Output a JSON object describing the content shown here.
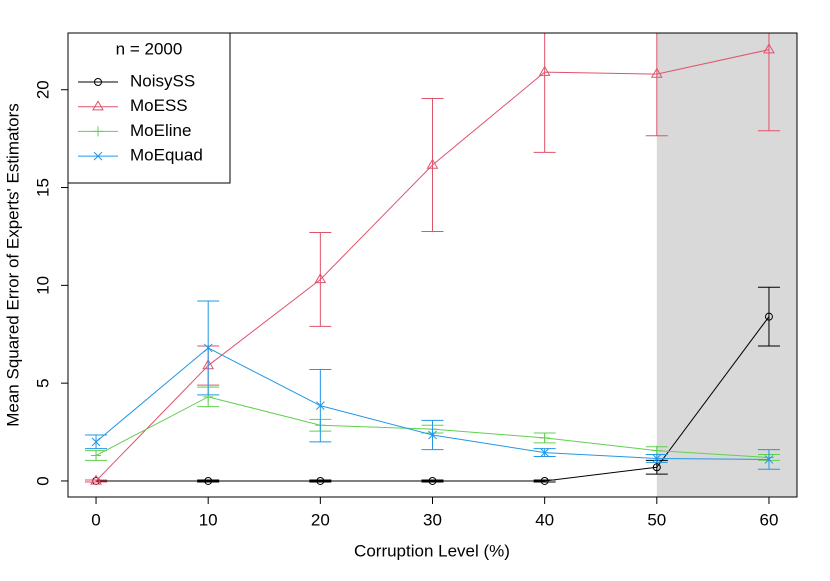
{
  "chart_data": {
    "type": "line",
    "x_label": "Corruption Level (%)",
    "y_label": "Mean Squared Error of Experts' Estimators",
    "legend_title": "n = 2000",
    "legend_position": "top-left",
    "x": [
      0,
      10,
      20,
      30,
      40,
      50,
      60
    ],
    "series": [
      {
        "name": "NoisySS",
        "color": "#000000",
        "marker": "circle",
        "values": [
          0,
          0,
          0,
          0,
          0,
          0.7,
          8.4
        ],
        "errors": [
          0.05,
          0.05,
          0.05,
          0.05,
          0.05,
          0.35,
          1.5
        ]
      },
      {
        "name": "MoESS",
        "color": "#DF536B",
        "marker": "triangle",
        "values": [
          0,
          5.9,
          10.3,
          16.15,
          20.9,
          20.8,
          22.05
        ],
        "errors": [
          0.05,
          1.0,
          2.4,
          3.4,
          4.1,
          3.15,
          4.15
        ]
      },
      {
        "name": "MoEline",
        "color": "#61D04F",
        "marker": "plus",
        "values": [
          1.3,
          4.3,
          2.85,
          2.65,
          2.2,
          1.55,
          1.2
        ],
        "errors": [
          0.25,
          0.5,
          0.3,
          0.2,
          0.25,
          0.2,
          0.15
        ]
      },
      {
        "name": "MoEquad",
        "color": "#2297E6",
        "marker": "x",
        "values": [
          2.0,
          6.8,
          3.85,
          2.35,
          1.45,
          1.15,
          1.1
        ],
        "errors": [
          0.35,
          2.4,
          1.85,
          0.75,
          0.2,
          0.2,
          0.5
        ]
      }
    ],
    "shaded_xrange": [
      50,
      62.5
    ],
    "shade_color": "#d9d9d9",
    "xlim": [
      -2.5,
      62.5
    ],
    "ylim": [
      -0.82,
      22.9
    ],
    "xticks": [
      0,
      10,
      20,
      30,
      40,
      50,
      60
    ],
    "yticks": [
      0,
      5,
      10,
      15,
      20
    ]
  }
}
